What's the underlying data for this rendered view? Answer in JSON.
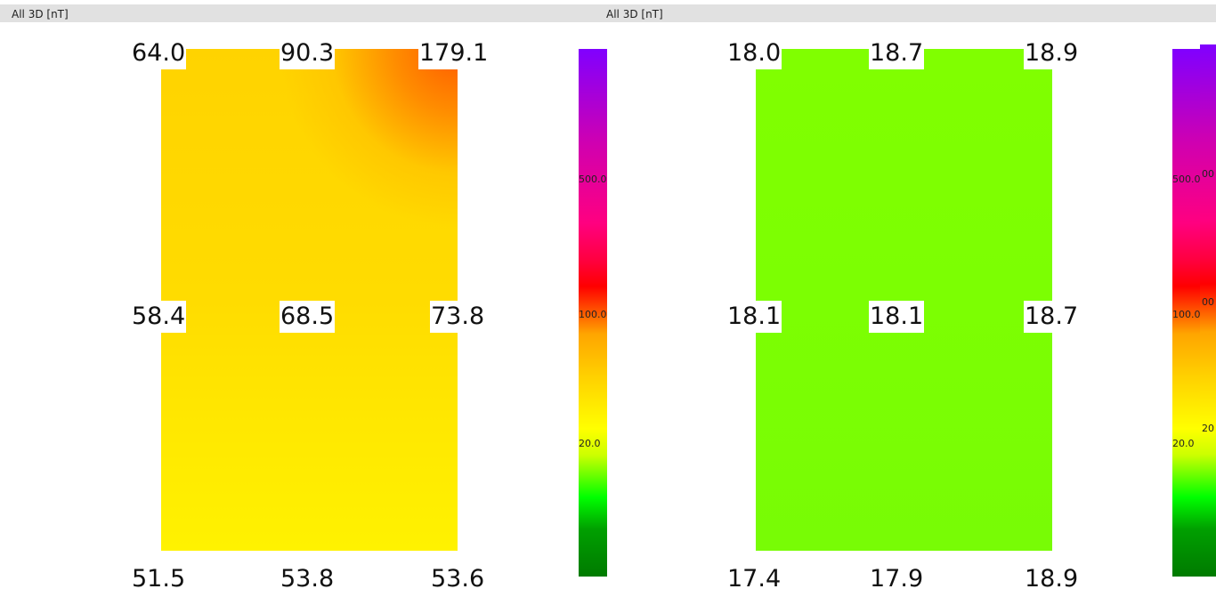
{
  "left_panel": {
    "title": "All 3D [nT]",
    "values": {
      "top": [
        "64.0",
        "90.3",
        "179.1"
      ],
      "mid": [
        "58.4",
        "68.5",
        "73.8"
      ],
      "bottom": [
        "51.5",
        "53.8",
        "53.6"
      ]
    },
    "colorbar_labels": [
      "500.0",
      "100.0",
      "20.0"
    ]
  },
  "right_panel": {
    "title": "All 3D [nT]",
    "values": {
      "top": [
        "18.0",
        "18.7",
        "18.9"
      ],
      "mid": [
        "18.1",
        "18.1",
        "18.7"
      ],
      "bottom": [
        "17.4",
        "17.9",
        "18.9"
      ]
    },
    "colorbar_labels": [
      "500.0",
      "100.0",
      "20.0"
    ],
    "colorbar_extra_labels": [
      "00",
      "00",
      "20"
    ]
  },
  "colorscale": [
    "#7a00ff",
    "#ff0095",
    "#ff0000",
    "#ffa500",
    "#ffff00",
    "#00ff00",
    "#007a00"
  ]
}
